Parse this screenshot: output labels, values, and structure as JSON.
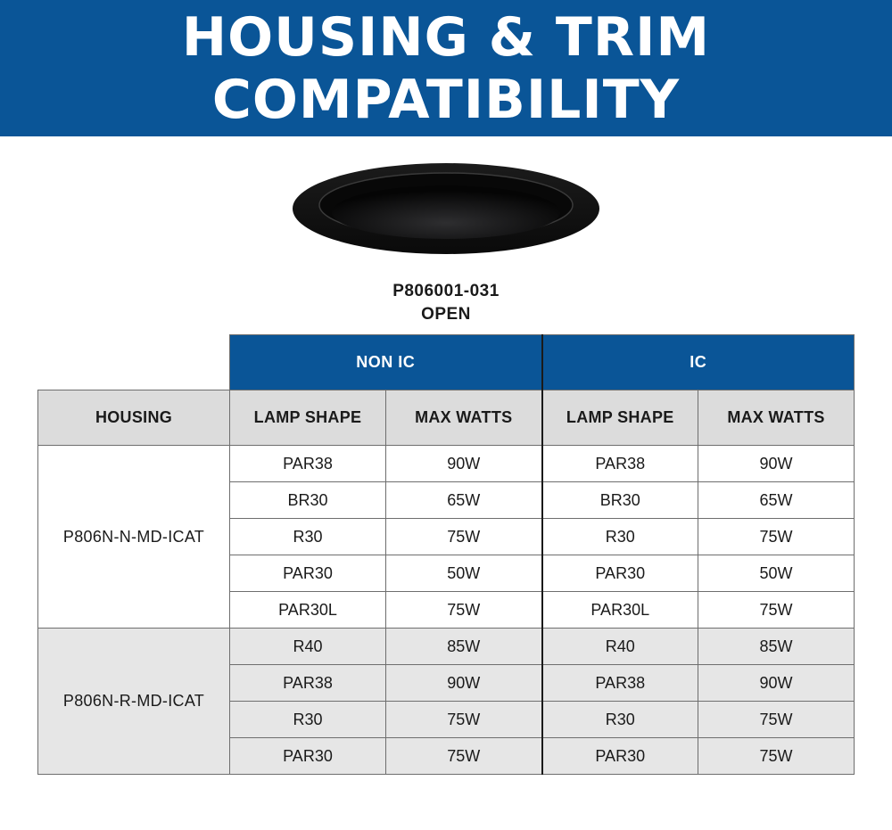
{
  "banner": {
    "line1": "HOUSING & TRIM",
    "line2": "COMPATIBILITY"
  },
  "product": {
    "code": "P806001-031",
    "type": "OPEN",
    "trim_icon": "recessed-trim-icon"
  },
  "colors": {
    "brand": "#0a5597",
    "header_gray": "#dcdcdc",
    "row_gray": "#e6e6e6"
  },
  "table": {
    "group_headers": [
      "NON IC",
      "IC"
    ],
    "columns": {
      "housing": "HOUSING",
      "lamp": "LAMP SHAPE",
      "watts": "MAX WATTS"
    },
    "groups": [
      {
        "housing": "P806N-N-MD-ICAT",
        "rows": [
          {
            "nonic_lamp": "PAR38",
            "nonic_watts": "90W",
            "ic_lamp": "PAR38",
            "ic_watts": "90W"
          },
          {
            "nonic_lamp": "BR30",
            "nonic_watts": "65W",
            "ic_lamp": "BR30",
            "ic_watts": "65W"
          },
          {
            "nonic_lamp": "R30",
            "nonic_watts": "75W",
            "ic_lamp": "R30",
            "ic_watts": "75W"
          },
          {
            "nonic_lamp": "PAR30",
            "nonic_watts": "50W",
            "ic_lamp": "PAR30",
            "ic_watts": "50W"
          },
          {
            "nonic_lamp": "PAR30L",
            "nonic_watts": "75W",
            "ic_lamp": "PAR30L",
            "ic_watts": "75W"
          }
        ]
      },
      {
        "housing": "P806N-R-MD-ICAT",
        "rows": [
          {
            "nonic_lamp": "R40",
            "nonic_watts": "85W",
            "ic_lamp": "R40",
            "ic_watts": "85W"
          },
          {
            "nonic_lamp": "PAR38",
            "nonic_watts": "90W",
            "ic_lamp": "PAR38",
            "ic_watts": "90W"
          },
          {
            "nonic_lamp": "R30",
            "nonic_watts": "75W",
            "ic_lamp": "R30",
            "ic_watts": "75W"
          },
          {
            "nonic_lamp": "PAR30",
            "nonic_watts": "75W",
            "ic_lamp": "PAR30",
            "ic_watts": "75W"
          }
        ]
      }
    ]
  }
}
